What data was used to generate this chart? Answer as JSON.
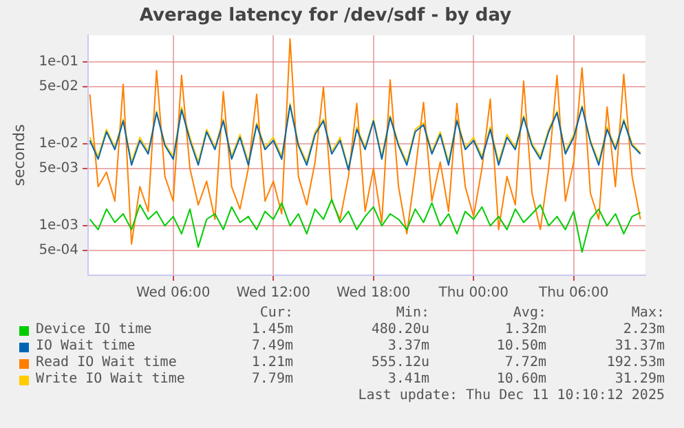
{
  "chart_data": {
    "type": "line",
    "title": "Average latency for /dev/sdf - by day",
    "ylabel": "seconds",
    "log": "y",
    "grid": true,
    "legend": "bottom",
    "marker": "none",
    "line_style": "solid",
    "xlim": [
      "2025-12-10T00:54",
      "2025-12-11T10:18"
    ],
    "xticks": [
      {
        "value": "2025-12-10T06:00",
        "label": "Wed 06:00"
      },
      {
        "value": "2025-12-10T12:00",
        "label": "Wed 12:00"
      },
      {
        "value": "2025-12-10T18:00",
        "label": "Wed 18:00"
      },
      {
        "value": "2025-12-11T00:00",
        "label": "Thu 00:00"
      },
      {
        "value": "2025-12-11T06:00",
        "label": "Thu 06:00"
      }
    ],
    "ylim": [
      0.00025,
      0.21
    ],
    "yticks": [
      {
        "value": 0.0005,
        "label": "5e-04"
      },
      {
        "value": 0.001,
        "label": "1e-03"
      },
      {
        "value": 0.005,
        "label": "5e-03"
      },
      {
        "value": 0.01,
        "label": "1e-02"
      },
      {
        "value": 0.05,
        "label": "5e-02"
      },
      {
        "value": 0.1,
        "label": "1e-01"
      }
    ],
    "x": [
      "2025-12-10T01:00",
      "2025-12-10T01:30",
      "2025-12-10T02:00",
      "2025-12-10T02:30",
      "2025-12-10T03:00",
      "2025-12-10T03:30",
      "2025-12-10T04:00",
      "2025-12-10T04:30",
      "2025-12-10T05:00",
      "2025-12-10T05:30",
      "2025-12-10T06:00",
      "2025-12-10T06:30",
      "2025-12-10T07:00",
      "2025-12-10T07:30",
      "2025-12-10T08:00",
      "2025-12-10T08:30",
      "2025-12-10T09:00",
      "2025-12-10T09:30",
      "2025-12-10T10:00",
      "2025-12-10T10:30",
      "2025-12-10T11:00",
      "2025-12-10T11:30",
      "2025-12-10T12:00",
      "2025-12-10T12:30",
      "2025-12-10T13:00",
      "2025-12-10T13:30",
      "2025-12-10T14:00",
      "2025-12-10T14:30",
      "2025-12-10T15:00",
      "2025-12-10T15:30",
      "2025-12-10T16:00",
      "2025-12-10T16:30",
      "2025-12-10T17:00",
      "2025-12-10T17:30",
      "2025-12-10T18:00",
      "2025-12-10T18:30",
      "2025-12-10T19:00",
      "2025-12-10T19:30",
      "2025-12-10T20:00",
      "2025-12-10T20:30",
      "2025-12-10T21:00",
      "2025-12-10T21:30",
      "2025-12-10T22:00",
      "2025-12-10T22:30",
      "2025-12-10T23:00",
      "2025-12-10T23:30",
      "2025-12-11T00:00",
      "2025-12-11T00:30",
      "2025-12-11T01:00",
      "2025-12-11T01:30",
      "2025-12-11T02:00",
      "2025-12-11T02:30",
      "2025-12-11T03:00",
      "2025-12-11T03:30",
      "2025-12-11T04:00",
      "2025-12-11T04:30",
      "2025-12-11T05:00",
      "2025-12-11T05:30",
      "2025-12-11T06:00",
      "2025-12-11T06:30",
      "2025-12-11T07:00",
      "2025-12-11T07:30",
      "2025-12-11T08:00",
      "2025-12-11T08:30",
      "2025-12-11T09:00",
      "2025-12-11T09:30",
      "2025-12-11T10:00"
    ],
    "series": [
      {
        "name": "Device IO time",
        "color": "#00cc00",
        "values": [
          0.0012,
          0.0009,
          0.0016,
          0.0011,
          0.0014,
          0.0009,
          0.0018,
          0.0012,
          0.0015,
          0.001,
          0.0013,
          0.0008,
          0.0016,
          0.00055,
          0.0012,
          0.0014,
          0.0009,
          0.0017,
          0.0011,
          0.0013,
          0.0009,
          0.0015,
          0.0012,
          0.0019,
          0.001,
          0.0014,
          0.0008,
          0.0016,
          0.0012,
          0.0021,
          0.0011,
          0.0015,
          0.0009,
          0.0013,
          0.0017,
          0.001,
          0.0014,
          0.0012,
          0.0009,
          0.0016,
          0.0011,
          0.0019,
          0.001,
          0.0014,
          0.0008,
          0.0015,
          0.0012,
          0.0017,
          0.001,
          0.0013,
          0.0009,
          0.0016,
          0.0011,
          0.0014,
          0.0018,
          0.001,
          0.0013,
          0.0009,
          0.0015,
          0.00048,
          0.0012,
          0.0016,
          0.001,
          0.0014,
          0.0008,
          0.0013,
          0.00145
        ]
      },
      {
        "name": "IO Wait time",
        "color": "#0066b3",
        "values": [
          0.011,
          0.0065,
          0.014,
          0.0085,
          0.019,
          0.0055,
          0.011,
          0.0075,
          0.024,
          0.0095,
          0.0065,
          0.026,
          0.011,
          0.0055,
          0.014,
          0.0085,
          0.019,
          0.0065,
          0.012,
          0.0055,
          0.017,
          0.0085,
          0.011,
          0.0065,
          0.0295,
          0.0095,
          0.0055,
          0.013,
          0.019,
          0.0075,
          0.011,
          0.0048,
          0.015,
          0.0085,
          0.019,
          0.0065,
          0.021,
          0.0095,
          0.0055,
          0.014,
          0.017,
          0.0075,
          0.013,
          0.0055,
          0.019,
          0.0085,
          0.011,
          0.0065,
          0.015,
          0.0055,
          0.012,
          0.0085,
          0.021,
          0.0095,
          0.0065,
          0.014,
          0.024,
          0.0075,
          0.012,
          0.028,
          0.0105,
          0.0055,
          0.015,
          0.0085,
          0.019,
          0.0095,
          0.0075
        ]
      },
      {
        "name": "Read IO Wait time",
        "color": "#ff8000",
        "values": [
          0.04,
          0.003,
          0.0045,
          0.002,
          0.053,
          0.0006,
          0.003,
          0.0015,
          0.078,
          0.004,
          0.002,
          0.068,
          0.005,
          0.0018,
          0.0035,
          0.0012,
          0.043,
          0.003,
          0.0016,
          0.005,
          0.04,
          0.002,
          0.0035,
          0.0014,
          0.19,
          0.004,
          0.0018,
          0.006,
          0.049,
          0.002,
          0.0012,
          0.004,
          0.031,
          0.0015,
          0.005,
          0.0011,
          0.06,
          0.003,
          0.0008,
          0.0045,
          0.032,
          0.002,
          0.006,
          0.0015,
          0.031,
          0.003,
          0.0013,
          0.005,
          0.035,
          0.0009,
          0.004,
          0.0018,
          0.058,
          0.0025,
          0.0009,
          0.005,
          0.068,
          0.002,
          0.006,
          0.084,
          0.0025,
          0.0012,
          0.028,
          0.003,
          0.07,
          0.004,
          0.0012
        ]
      },
      {
        "name": "Write IO Wait time",
        "color": "#ffcc00",
        "values": [
          0.012,
          0.007,
          0.015,
          0.009,
          0.02,
          0.006,
          0.012,
          0.008,
          0.025,
          0.01,
          0.007,
          0.028,
          0.012,
          0.006,
          0.015,
          0.009,
          0.02,
          0.007,
          0.013,
          0.006,
          0.018,
          0.009,
          0.012,
          0.007,
          0.031,
          0.01,
          0.006,
          0.014,
          0.02,
          0.008,
          0.012,
          0.005,
          0.016,
          0.009,
          0.02,
          0.007,
          0.022,
          0.01,
          0.006,
          0.015,
          0.018,
          0.008,
          0.014,
          0.006,
          0.02,
          0.009,
          0.012,
          0.007,
          0.016,
          0.006,
          0.013,
          0.009,
          0.022,
          0.01,
          0.007,
          0.015,
          0.025,
          0.008,
          0.013,
          0.029,
          0.011,
          0.006,
          0.016,
          0.009,
          0.02,
          0.01,
          0.0078
        ]
      }
    ],
    "annotations": [
      "Cur:",
      "Min:",
      "Avg:",
      "Max:",
      "1.45m",
      "480.20u",
      "1.32m",
      "2.23m",
      "7.49m",
      "3.37m",
      "10.50m",
      "31.37m",
      "1.21m",
      "555.12u",
      "7.72m",
      "192.53m",
      "7.79m",
      "3.41m",
      "10.60m",
      "31.29m",
      "Last update: Thu Dec 11 10:10:12 2025"
    ]
  }
}
